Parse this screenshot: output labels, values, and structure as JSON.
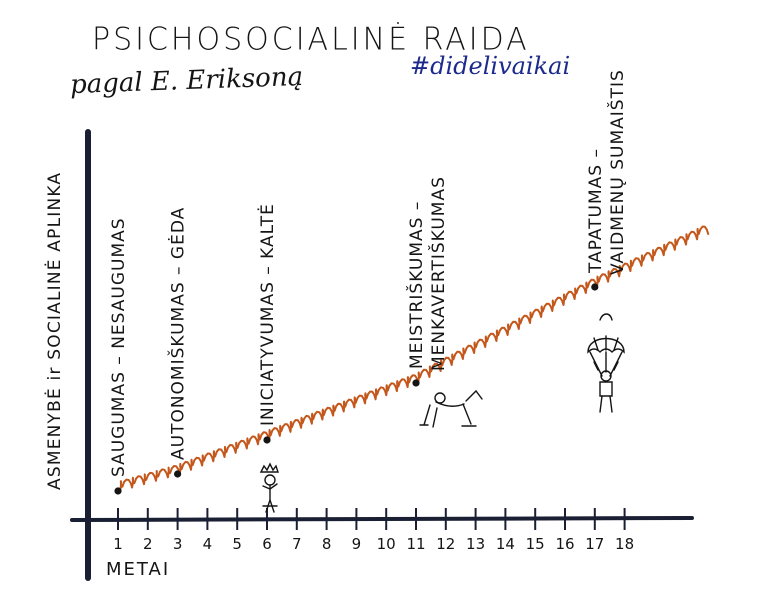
{
  "title": "PSICHOSOCIALINĖ   RAIDA",
  "subtitle": "pagal E. Eriksoną",
  "hashtag": "#didelivaikai",
  "y_axis_label": "ASMENYBĖ ir SOCIALINĖ APLINKA",
  "x_axis_label": "METAI",
  "colors": {
    "ink": "#151515",
    "axis": "#1a1f33",
    "curve": "#c4571b",
    "hashtag": "#1c2a8c"
  },
  "x_ticks": [
    "1",
    "2",
    "3",
    "4",
    "5",
    "6",
    "7",
    "8",
    "9",
    "10",
    "11",
    "12",
    "13",
    "14",
    "15",
    "16",
    "17",
    "18"
  ],
  "stages": [
    {
      "age": 1,
      "label": "SAUGUMAS – NESAUGUMAS"
    },
    {
      "age": 3,
      "label": "AUTONOMIŠKUMAS – GĖDA"
    },
    {
      "age": 6,
      "label": "INICIATYVUMAS – KALTĖ"
    },
    {
      "age": 11,
      "label": "MEISTRIŠKUMAS –",
      "label2": "MENKAVERTIŠKUMAS"
    },
    {
      "age": 17,
      "label": "TAPATUMAS –",
      "label2": "VAIDMENŲ SUMAIŠTIS"
    }
  ]
}
